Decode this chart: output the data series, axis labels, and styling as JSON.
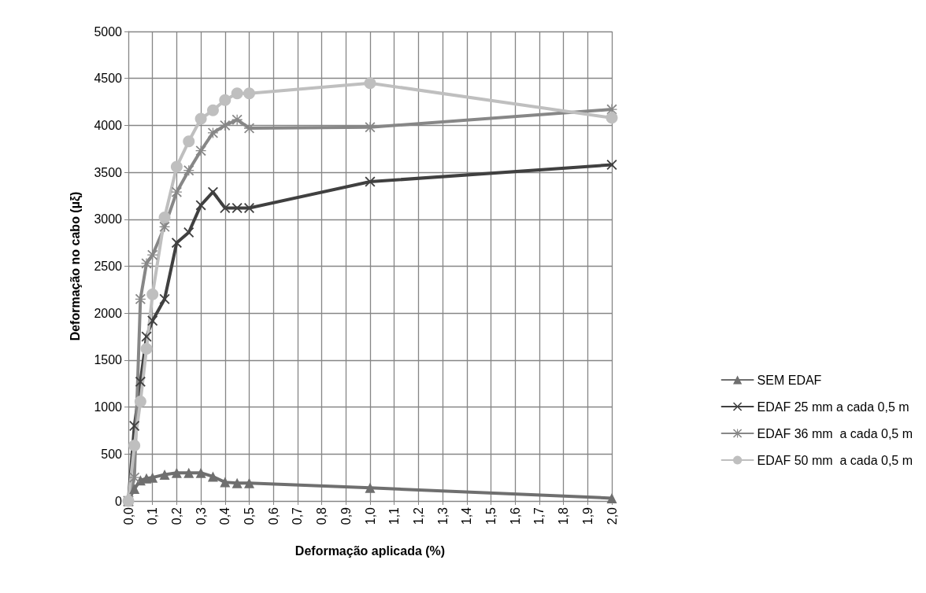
{
  "chart_data": {
    "type": "line",
    "xlabel": "Deformação aplicada (%)",
    "ylabel": "Deformação no cabo (µξ)",
    "x": [
      0,
      0.025,
      0.05,
      0.075,
      0.1,
      0.15,
      0.2,
      0.25,
      0.3,
      0.35,
      0.4,
      0.45,
      0.5,
      1.0,
      2.0
    ],
    "series": [
      {
        "name": "SEM EDAF",
        "color": "#6f6f6f",
        "marker": "triangle",
        "values": [
          0,
          130,
          220,
          240,
          250,
          280,
          300,
          300,
          300,
          260,
          200,
          190,
          190,
          140,
          30
        ]
      },
      {
        "name": "EDAF 25 mm a cada 0,5 m",
        "color": "#404040",
        "marker": "cross",
        "values": [
          0,
          800,
          1270,
          1750,
          1920,
          2150,
          2750,
          2860,
          3150,
          3290,
          3120,
          3120,
          3120,
          3400,
          3580
        ]
      },
      {
        "name": "EDAF 36 mm  a cada 0,5 m",
        "color": "#878787",
        "marker": "star",
        "values": [
          0,
          250,
          2150,
          2530,
          2620,
          2920,
          3290,
          3520,
          3730,
          3920,
          4000,
          4060,
          3970,
          3980,
          4170
        ]
      },
      {
        "name": "EDAF 50 mm  a cada 0,5 m",
        "color": "#bfbfbf",
        "marker": "circle",
        "values": [
          0,
          590,
          1060,
          1620,
          2200,
          3020,
          3560,
          3830,
          4070,
          4160,
          4270,
          4340,
          4340,
          4450,
          4080
        ]
      }
    ],
    "xlim": [
      0,
      2
    ],
    "xticks": [
      {
        "value": 0,
        "label": "0,0"
      },
      {
        "value": 0.1,
        "label": "0,1"
      },
      {
        "value": 0.2,
        "label": "0,2"
      },
      {
        "value": 0.3,
        "label": "0,3"
      },
      {
        "value": 0.4,
        "label": "0,4"
      },
      {
        "value": 0.5,
        "label": "0,5"
      },
      {
        "value": 0.6,
        "label": "0,6"
      },
      {
        "value": 0.7,
        "label": "0,7"
      },
      {
        "value": 0.8,
        "label": "0,8"
      },
      {
        "value": 0.9,
        "label": "0,9"
      },
      {
        "value": 1.0,
        "label": "1,0"
      },
      {
        "value": 1.1,
        "label": "1,1"
      },
      {
        "value": 1.2,
        "label": "1,2"
      },
      {
        "value": 1.3,
        "label": "1,3"
      },
      {
        "value": 1.4,
        "label": "1,4"
      },
      {
        "value": 1.5,
        "label": "1,5"
      },
      {
        "value": 1.6,
        "label": "1,6"
      },
      {
        "value": 1.7,
        "label": "1,7"
      },
      {
        "value": 1.8,
        "label": "1,8"
      },
      {
        "value": 1.9,
        "label": "1,9"
      },
      {
        "value": 2.0,
        "label": "2,0"
      }
    ],
    "ylim": [
      0,
      5000
    ],
    "yticks": [
      0,
      500,
      1000,
      1500,
      2000,
      2500,
      3000,
      3500,
      4000,
      4500,
      5000
    ],
    "grid": true,
    "legend": "right",
    "line_style": "solid"
  }
}
